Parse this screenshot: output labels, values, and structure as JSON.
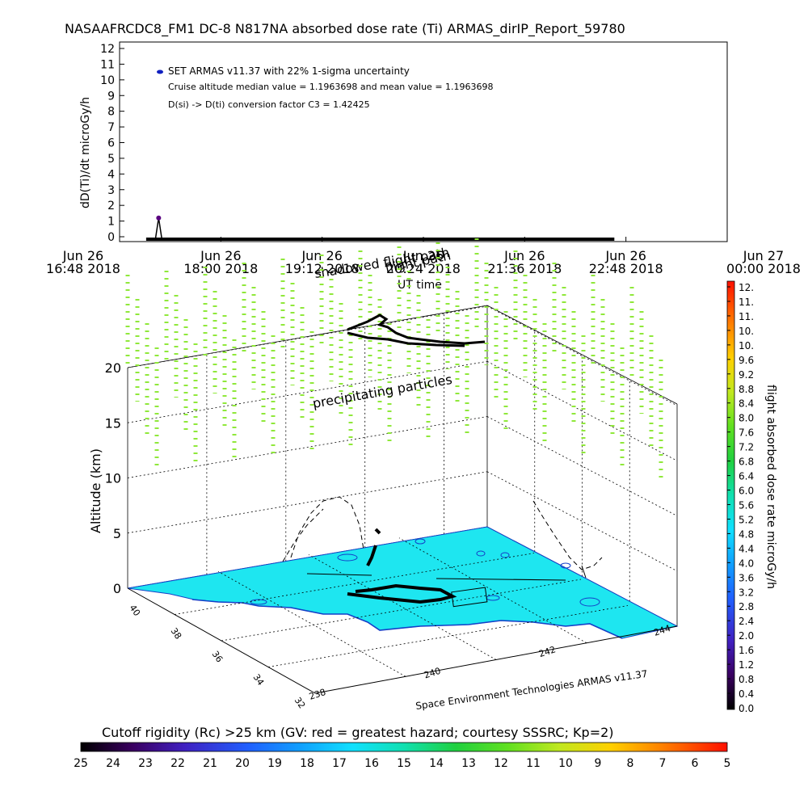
{
  "title": "NASAAFRCDC8_FM1 DC-8   N817NA absorbed dose rate (Ti) ARMAS_dirIP_Report_59780",
  "top_chart": {
    "ylabel": "dD(Ti)/dt microGy/h",
    "xlabel": "UT time",
    "legend": {
      "series": "SET ARMAS v11.37 with 22% 1-sigma uncertainty",
      "note1": "Cruise altitude median value = 1.1963698 and mean value = 1.1963698",
      "note2": "D(si) -> D(ti) conversion factor C3 = 1.42425"
    },
    "overlay_labels": [
      "shadowed flight path",
      "flight path"
    ]
  },
  "chart_data": [
    {
      "type": "line",
      "title": "",
      "xlabel": "UT time",
      "ylabel": "dD(Ti)/dt microGy/h",
      "ylim": [
        0,
        12
      ],
      "yticks": [
        0,
        1,
        2,
        3,
        4,
        5,
        6,
        7,
        8,
        9,
        10,
        11,
        12
      ],
      "xticks": [
        {
          "date": "Jun 26",
          "time": "16:48 2018"
        },
        {
          "date": "Jun 26",
          "time": "18:00 2018"
        },
        {
          "date": "Jun 26",
          "time": "19:12 2018"
        },
        {
          "date": "Jun 26",
          "time": "20:24 2018"
        },
        {
          "date": "Jun 26",
          "time": "21:36 2018"
        },
        {
          "date": "Jun 26",
          "time": "22:48 2018"
        },
        {
          "date": "Jun 27",
          "time": "00:00 2018"
        }
      ],
      "xlim_hours": [
        16.8,
        24.0
      ],
      "series": [
        {
          "name": "SET ARMAS v11.37 with 22% 1-sigma uncertainty",
          "spike": {
            "t_hours": 17.55,
            "value": 1.2
          },
          "baseline": {
            "t_start_hours": 17.45,
            "t_end_hours": 22.95,
            "value": 0.0
          }
        }
      ],
      "spike_color": "#5a0080",
      "legend_marker_color": "#1020c0"
    },
    {
      "type": "heatmap",
      "title": "",
      "zlabel": "Altitude (km)",
      "zticks": [
        0,
        5,
        10,
        15,
        20
      ],
      "latitude_ticks": [
        40,
        38,
        36,
        34,
        32
      ],
      "longitude_ticks": [
        238,
        240,
        242,
        244
      ],
      "surface_color": "#1ee6f0",
      "particle_color": "#8fe83a",
      "annotation": "precipitating particles",
      "credit": "Space Environment Technologies ARMAS v11.37"
    }
  ],
  "right_colorbar": {
    "label": "flight absorbed dose rate microGy/h",
    "ticks": [
      "0.0",
      "0.4",
      "0.8",
      "1.2",
      "1.6",
      "2.0",
      "2.4",
      "2.8",
      "3.2",
      "3.6",
      "4.0",
      "4.4",
      "4.8",
      "5.2",
      "5.6",
      "6.0",
      "6.4",
      "6.8",
      "7.2",
      "7.6",
      "8.0",
      "8.4",
      "8.8",
      "9.2",
      "9.6",
      "10.",
      "10.",
      "11.",
      "11.",
      "12."
    ]
  },
  "bottom_colorbar": {
    "label": "Cutoff rigidity (Rc) >25 km (GV: red = greatest hazard; courtesy SSSRC; Kp=2)",
    "ticks": [
      "25",
      "24",
      "23",
      "22",
      "21",
      "20",
      "19",
      "18",
      "17",
      "16",
      "15",
      "14",
      "13",
      "12",
      "11",
      "10",
      "9",
      "8",
      "7",
      "6",
      "5"
    ]
  },
  "colors": {
    "black": "#000000",
    "cyan_surface": "#1ee6f0",
    "green_particles": "#8fe83a"
  }
}
